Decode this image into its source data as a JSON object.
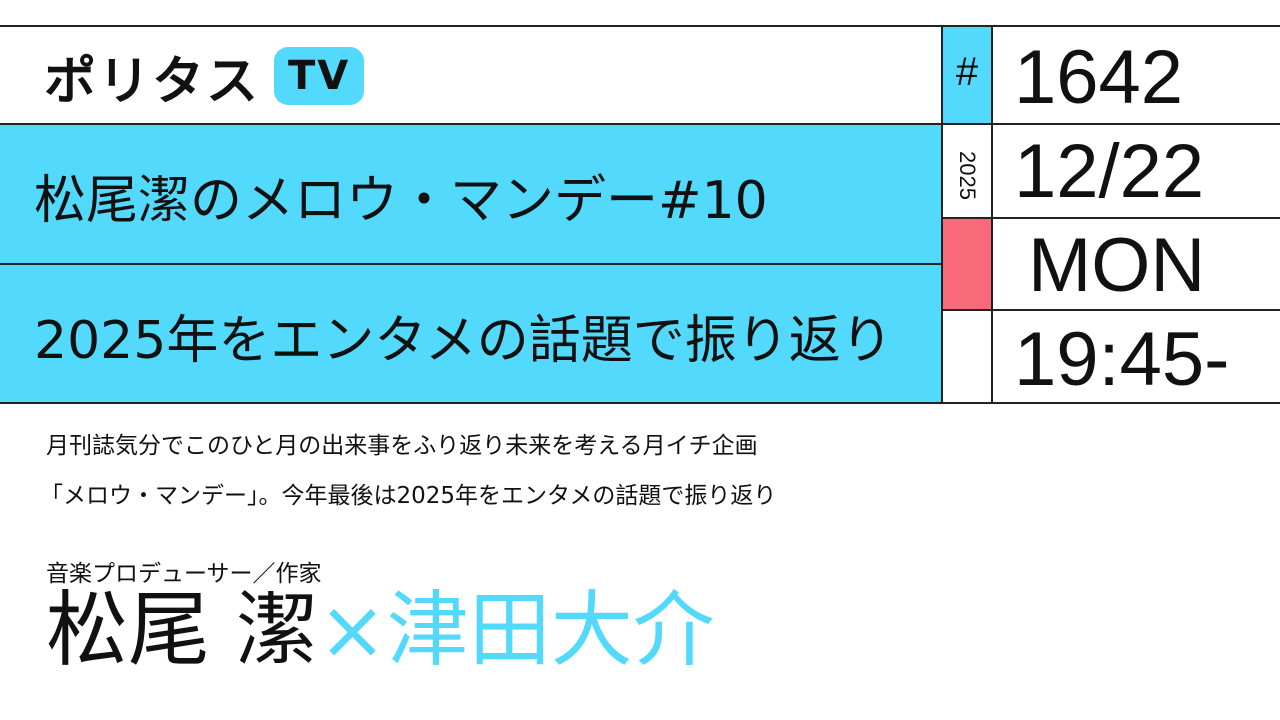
{
  "logo": {
    "text": "ポリタス",
    "badge": "TV"
  },
  "episode": {
    "hash": "#",
    "number": "1642"
  },
  "date": {
    "year": "2025",
    "month_day": "12/22",
    "weekday": "MON",
    "time": "19:45-"
  },
  "title": {
    "line1": "松尾潔のメロウ・マンデー#10",
    "line2": "2025年をエンタメの話題で振り返り"
  },
  "description": {
    "line1": "月刊誌気分でこのひと月の出来事をふり返り未来を考える月イチ企画",
    "line2": "「メロウ・マンデー」。今年最後は2025年をエンタメの話題で振り返り"
  },
  "guests": {
    "role": "音楽プロデューサー／作家",
    "name1": "松尾 潔",
    "separator": "×",
    "name2": "津田大介"
  },
  "colors": {
    "accent": "#52d9fb",
    "highlight": "#f86a7a"
  }
}
